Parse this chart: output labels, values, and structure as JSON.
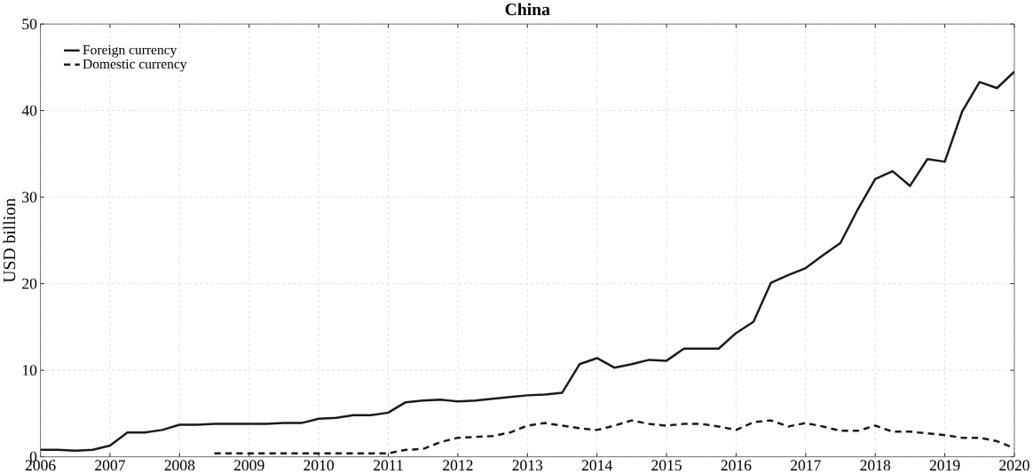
{
  "chart_data": {
    "type": "line",
    "title": "China",
    "ylabel": "USD billion",
    "x": [
      2006,
      2006.25,
      2006.5,
      2006.75,
      2007,
      2007.25,
      2007.5,
      2007.75,
      2008,
      2008.25,
      2008.5,
      2008.75,
      2009,
      2009.25,
      2009.5,
      2009.75,
      2010,
      2010.25,
      2010.5,
      2010.75,
      2011,
      2011.25,
      2011.5,
      2011.75,
      2012,
      2012.25,
      2012.5,
      2012.75,
      2013,
      2013.25,
      2013.5,
      2013.75,
      2014,
      2014.25,
      2014.5,
      2014.75,
      2015,
      2015.25,
      2015.5,
      2015.75,
      2016,
      2016.25,
      2016.5,
      2016.75,
      2017,
      2017.25,
      2017.5,
      2017.75,
      2018,
      2018.25,
      2018.5,
      2018.75,
      2019,
      2019.25,
      2019.5,
      2019.75,
      2020
    ],
    "series": [
      {
        "name": "Foreign currency",
        "color": "#1a1a1a",
        "line_style": "solid",
        "values": [
          0.8,
          0.8,
          0.7,
          0.8,
          1.3,
          2.8,
          2.8,
          3.1,
          3.7,
          3.7,
          3.8,
          3.8,
          3.8,
          3.8,
          3.9,
          3.9,
          4.4,
          4.5,
          4.8,
          4.8,
          5.1,
          6.3,
          6.5,
          6.6,
          6.4,
          6.5,
          6.7,
          6.9,
          7.1,
          7.2,
          7.4,
          10.7,
          11.4,
          10.3,
          10.7,
          11.2,
          11.1,
          12.5,
          12.5,
          12.5,
          14.3,
          15.6,
          20.1,
          21.0,
          21.8,
          23.3,
          24.7,
          28.6,
          32.1,
          33.0,
          31.3,
          34.4,
          34.1,
          39.9,
          43.3,
          42.6,
          44.5
        ]
      },
      {
        "name": "Domestic currency",
        "color": "#1a1a1a",
        "line_style": "dashed",
        "values": [
          null,
          null,
          null,
          null,
          null,
          null,
          null,
          null,
          null,
          null,
          0.4,
          0.4,
          0.4,
          0.4,
          0.4,
          0.4,
          0.4,
          0.4,
          0.4,
          0.4,
          0.4,
          0.8,
          0.9,
          1.7,
          2.2,
          2.3,
          2.4,
          2.8,
          3.6,
          3.9,
          3.6,
          3.3,
          3.1,
          3.6,
          4.2,
          3.8,
          3.6,
          3.8,
          3.8,
          3.5,
          3.1,
          4.0,
          4.2,
          3.5,
          3.9,
          3.5,
          3.0,
          3.0,
          3.6,
          2.9,
          2.9,
          2.7,
          2.5,
          2.2,
          2.2,
          1.8,
          1.0
        ]
      }
    ],
    "xlim": [
      2006,
      2020
    ],
    "ylim": [
      0,
      50
    ],
    "xticks": [
      2006,
      2007,
      2008,
      2009,
      2010,
      2011,
      2012,
      2013,
      2014,
      2015,
      2016,
      2017,
      2018,
      2019,
      2020
    ],
    "yticks": [
      0,
      10,
      20,
      30,
      40,
      50
    ],
    "grid": true,
    "legend": "top left",
    "marker": "none"
  }
}
